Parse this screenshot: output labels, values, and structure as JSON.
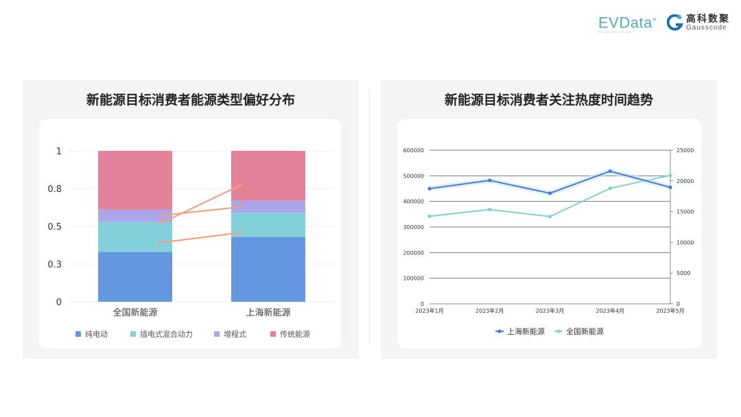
{
  "logos": {
    "evdata": "EVData",
    "evdata_sub": "SHANGHAI CHINA",
    "gauss_cn": "高科数聚",
    "gauss_en": "Gausscode"
  },
  "chart_data": [
    {
      "type": "bar",
      "stacked": true,
      "title": "新能源目标消费者能源类型偏好分布",
      "categories": [
        "全国新能源",
        "上海新能源"
      ],
      "series": [
        {
          "name": "纯电动",
          "values": [
            0.33,
            0.43
          ],
          "color": "#6596e0"
        },
        {
          "name": "插电式混合动力",
          "values": [
            0.2,
            0.16
          ],
          "color": "#82d0da"
        },
        {
          "name": "增程式",
          "values": [
            0.08,
            0.08
          ],
          "color": "#aba6ea"
        },
        {
          "name": "传统能源",
          "values": [
            0.39,
            0.33
          ],
          "color": "#e38299"
        }
      ],
      "yticks": [
        0,
        0.25,
        0.5,
        0.75,
        1
      ],
      "ytick_labels": [
        "0",
        "0.3",
        "0.5",
        "0.8",
        "1"
      ],
      "ylim": [
        0,
        1
      ],
      "grid": true,
      "legend": "bottom",
      "connector_color": "#f4a07f"
    },
    {
      "type": "line",
      "title": "新能源目标消费者关注热度时间趋势",
      "categories": [
        "2023年1月",
        "2023年2月",
        "2023年3月",
        "2023年4月",
        "2023年5月"
      ],
      "series": [
        {
          "name": "上海新能源",
          "axis": "left",
          "values": [
            450000,
            482000,
            432000,
            518000,
            455000
          ],
          "color": "#4a78d6"
        },
        {
          "name": "全国新能源",
          "axis": "right",
          "values": [
            14250,
            15350,
            14200,
            18800,
            20900
          ],
          "color": "#7fd0d8"
        }
      ],
      "ylim_left": [
        0,
        600000
      ],
      "yticks_left": [
        "0",
        "100000",
        "200000",
        "300000",
        "400000",
        "500000",
        "600000"
      ],
      "ylim_right": [
        0,
        25000
      ],
      "yticks_right": [
        "0",
        "5000",
        "10000",
        "15000",
        "20000",
        "25000"
      ],
      "grid": true,
      "legend": "bottom"
    }
  ]
}
